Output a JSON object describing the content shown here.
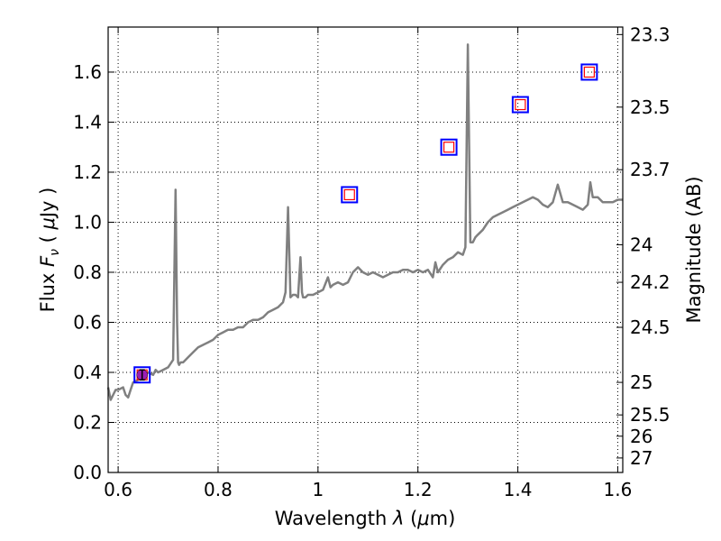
{
  "chart_data": {
    "type": "line",
    "title": "",
    "xlabel": {
      "prefix": "Wavelength ",
      "var": "λ",
      "unit_open": " (",
      "unit_mu": "μ",
      "unit_rest": "m)"
    },
    "ylabel": {
      "prefix": "Flux  ",
      "var": "F",
      "sub": "ν",
      "unit_open": "  ( ",
      "unit_mu": "μ",
      "unit_rest": "Jy )"
    },
    "y2label": "Magnitude (AB)",
    "xlim": [
      0.58,
      1.61
    ],
    "ylim": [
      0.0,
      1.78
    ],
    "grid": true,
    "x_ticks": [
      0.6,
      0.8,
      1.0,
      1.2,
      1.4,
      1.6
    ],
    "x_tick_labels": [
      "0.6",
      "0.8",
      "1",
      "1.2",
      "1.4",
      "1.6"
    ],
    "y_ticks": [
      0.0,
      0.2,
      0.4,
      0.6,
      0.8,
      1.0,
      1.2,
      1.4,
      1.6
    ],
    "y_tick_labels": [
      "0.0",
      "0.2",
      "0.4",
      "0.6",
      "0.8",
      "1.0",
      "1.2",
      "1.4",
      "1.6"
    ],
    "y2_ticks": [
      {
        "label": "23.3",
        "flux": 1.75
      },
      {
        "label": "23.5",
        "flux": 1.46
      },
      {
        "label": "23.7",
        "flux": 1.21
      },
      {
        "label": "24",
        "flux": 0.91
      },
      {
        "label": "24.2",
        "flux": 0.76
      },
      {
        "label": "24.5",
        "flux": 0.58
      },
      {
        "label": "25",
        "flux": 0.36
      },
      {
        "label": "25.5",
        "flux": 0.23
      },
      {
        "label": "26",
        "flux": 0.145
      },
      {
        "label": "27",
        "flux": 0.058
      }
    ],
    "colors": {
      "spectrum": "#808080",
      "photometry_box": "#0000ff",
      "model_box": "#ff0000",
      "observed_point": "#9b1fb5"
    },
    "spectrum": {
      "x": [
        0.58,
        0.585,
        0.59,
        0.595,
        0.6,
        0.61,
        0.615,
        0.62,
        0.625,
        0.63,
        0.64,
        0.65,
        0.66,
        0.67,
        0.675,
        0.68,
        0.69,
        0.7,
        0.71,
        0.715,
        0.718,
        0.72,
        0.722,
        0.725,
        0.73,
        0.74,
        0.75,
        0.76,
        0.77,
        0.78,
        0.79,
        0.8,
        0.81,
        0.82,
        0.83,
        0.84,
        0.85,
        0.86,
        0.87,
        0.88,
        0.89,
        0.9,
        0.91,
        0.92,
        0.93,
        0.935,
        0.94,
        0.945,
        0.95,
        0.955,
        0.96,
        0.965,
        0.968,
        0.97,
        0.975,
        0.98,
        0.99,
        1.0,
        1.01,
        1.02,
        1.025,
        1.03,
        1.04,
        1.05,
        1.06,
        1.07,
        1.08,
        1.09,
        1.1,
        1.11,
        1.12,
        1.13,
        1.14,
        1.15,
        1.16,
        1.17,
        1.18,
        1.19,
        1.2,
        1.21,
        1.22,
        1.23,
        1.235,
        1.24,
        1.25,
        1.26,
        1.27,
        1.28,
        1.29,
        1.295,
        1.3,
        1.305,
        1.31,
        1.315,
        1.32,
        1.33,
        1.34,
        1.35,
        1.36,
        1.37,
        1.38,
        1.39,
        1.4,
        1.41,
        1.42,
        1.43,
        1.44,
        1.45,
        1.46,
        1.47,
        1.48,
        1.49,
        1.5,
        1.51,
        1.52,
        1.53,
        1.54,
        1.545,
        1.55,
        1.56,
        1.57,
        1.58,
        1.59,
        1.6,
        1.61
      ],
      "y": [
        0.34,
        0.29,
        0.31,
        0.33,
        0.33,
        0.34,
        0.31,
        0.3,
        0.33,
        0.36,
        0.37,
        0.38,
        0.4,
        0.39,
        0.41,
        0.4,
        0.41,
        0.42,
        0.45,
        1.13,
        0.6,
        0.44,
        0.43,
        0.44,
        0.44,
        0.46,
        0.48,
        0.5,
        0.51,
        0.52,
        0.53,
        0.55,
        0.56,
        0.57,
        0.57,
        0.58,
        0.58,
        0.6,
        0.61,
        0.61,
        0.62,
        0.64,
        0.65,
        0.66,
        0.68,
        0.72,
        1.06,
        0.7,
        0.71,
        0.71,
        0.7,
        0.86,
        0.72,
        0.7,
        0.7,
        0.71,
        0.71,
        0.72,
        0.73,
        0.78,
        0.74,
        0.75,
        0.76,
        0.75,
        0.76,
        0.8,
        0.82,
        0.8,
        0.79,
        0.8,
        0.79,
        0.78,
        0.79,
        0.8,
        0.8,
        0.81,
        0.81,
        0.8,
        0.81,
        0.8,
        0.81,
        0.78,
        0.84,
        0.8,
        0.83,
        0.85,
        0.86,
        0.88,
        0.87,
        0.9,
        1.71,
        0.92,
        0.92,
        0.94,
        0.95,
        0.97,
        1.0,
        1.02,
        1.03,
        1.04,
        1.05,
        1.06,
        1.07,
        1.08,
        1.09,
        1.1,
        1.09,
        1.07,
        1.06,
        1.08,
        1.15,
        1.08,
        1.08,
        1.07,
        1.06,
        1.05,
        1.07,
        1.16,
        1.1,
        1.1,
        1.08,
        1.08,
        1.08,
        1.09,
        1.09
      ]
    },
    "photometry_points": [
      {
        "x": 0.648,
        "y": 0.39
      },
      {
        "x": 1.063,
        "y": 1.11
      },
      {
        "x": 1.262,
        "y": 1.3
      },
      {
        "x": 1.405,
        "y": 1.47
      },
      {
        "x": 1.543,
        "y": 1.6
      }
    ],
    "observed_point": {
      "x": 0.648,
      "y": 0.39,
      "err": 0.02
    }
  }
}
